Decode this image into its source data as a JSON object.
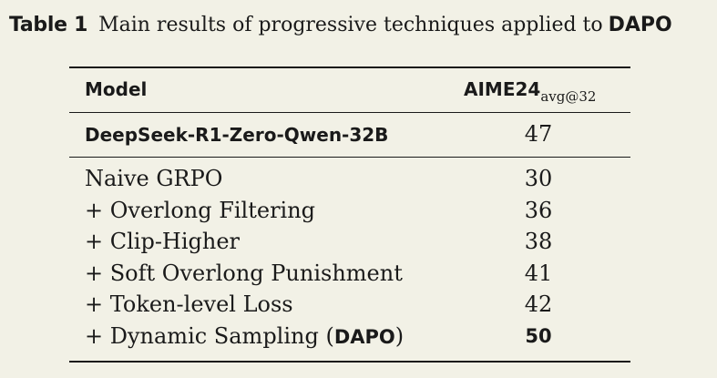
{
  "caption": {
    "label": "Table 1",
    "text": "Main results of progressive techniques applied to",
    "highlight": "DAPO"
  },
  "table": {
    "headers": {
      "model": "Model",
      "metric": "AIME24",
      "metric_sub": "avg@32"
    },
    "baseline": {
      "model": "DeepSeek-R1-Zero-Qwen-32B",
      "value": "47"
    },
    "rows": [
      {
        "method": "Naive GRPO",
        "value": "30"
      },
      {
        "method": "+ Overlong Filtering",
        "value": "36"
      },
      {
        "method": "+ Clip-Higher",
        "value": "38"
      },
      {
        "method": "+ Soft Overlong Punishment",
        "value": "41"
      },
      {
        "method": "+ Token-level Loss",
        "value": "42"
      },
      {
        "method": "+ Dynamic Sampling (",
        "method_bold": "DAPO",
        "method_end": ")",
        "value": "50"
      }
    ]
  }
}
